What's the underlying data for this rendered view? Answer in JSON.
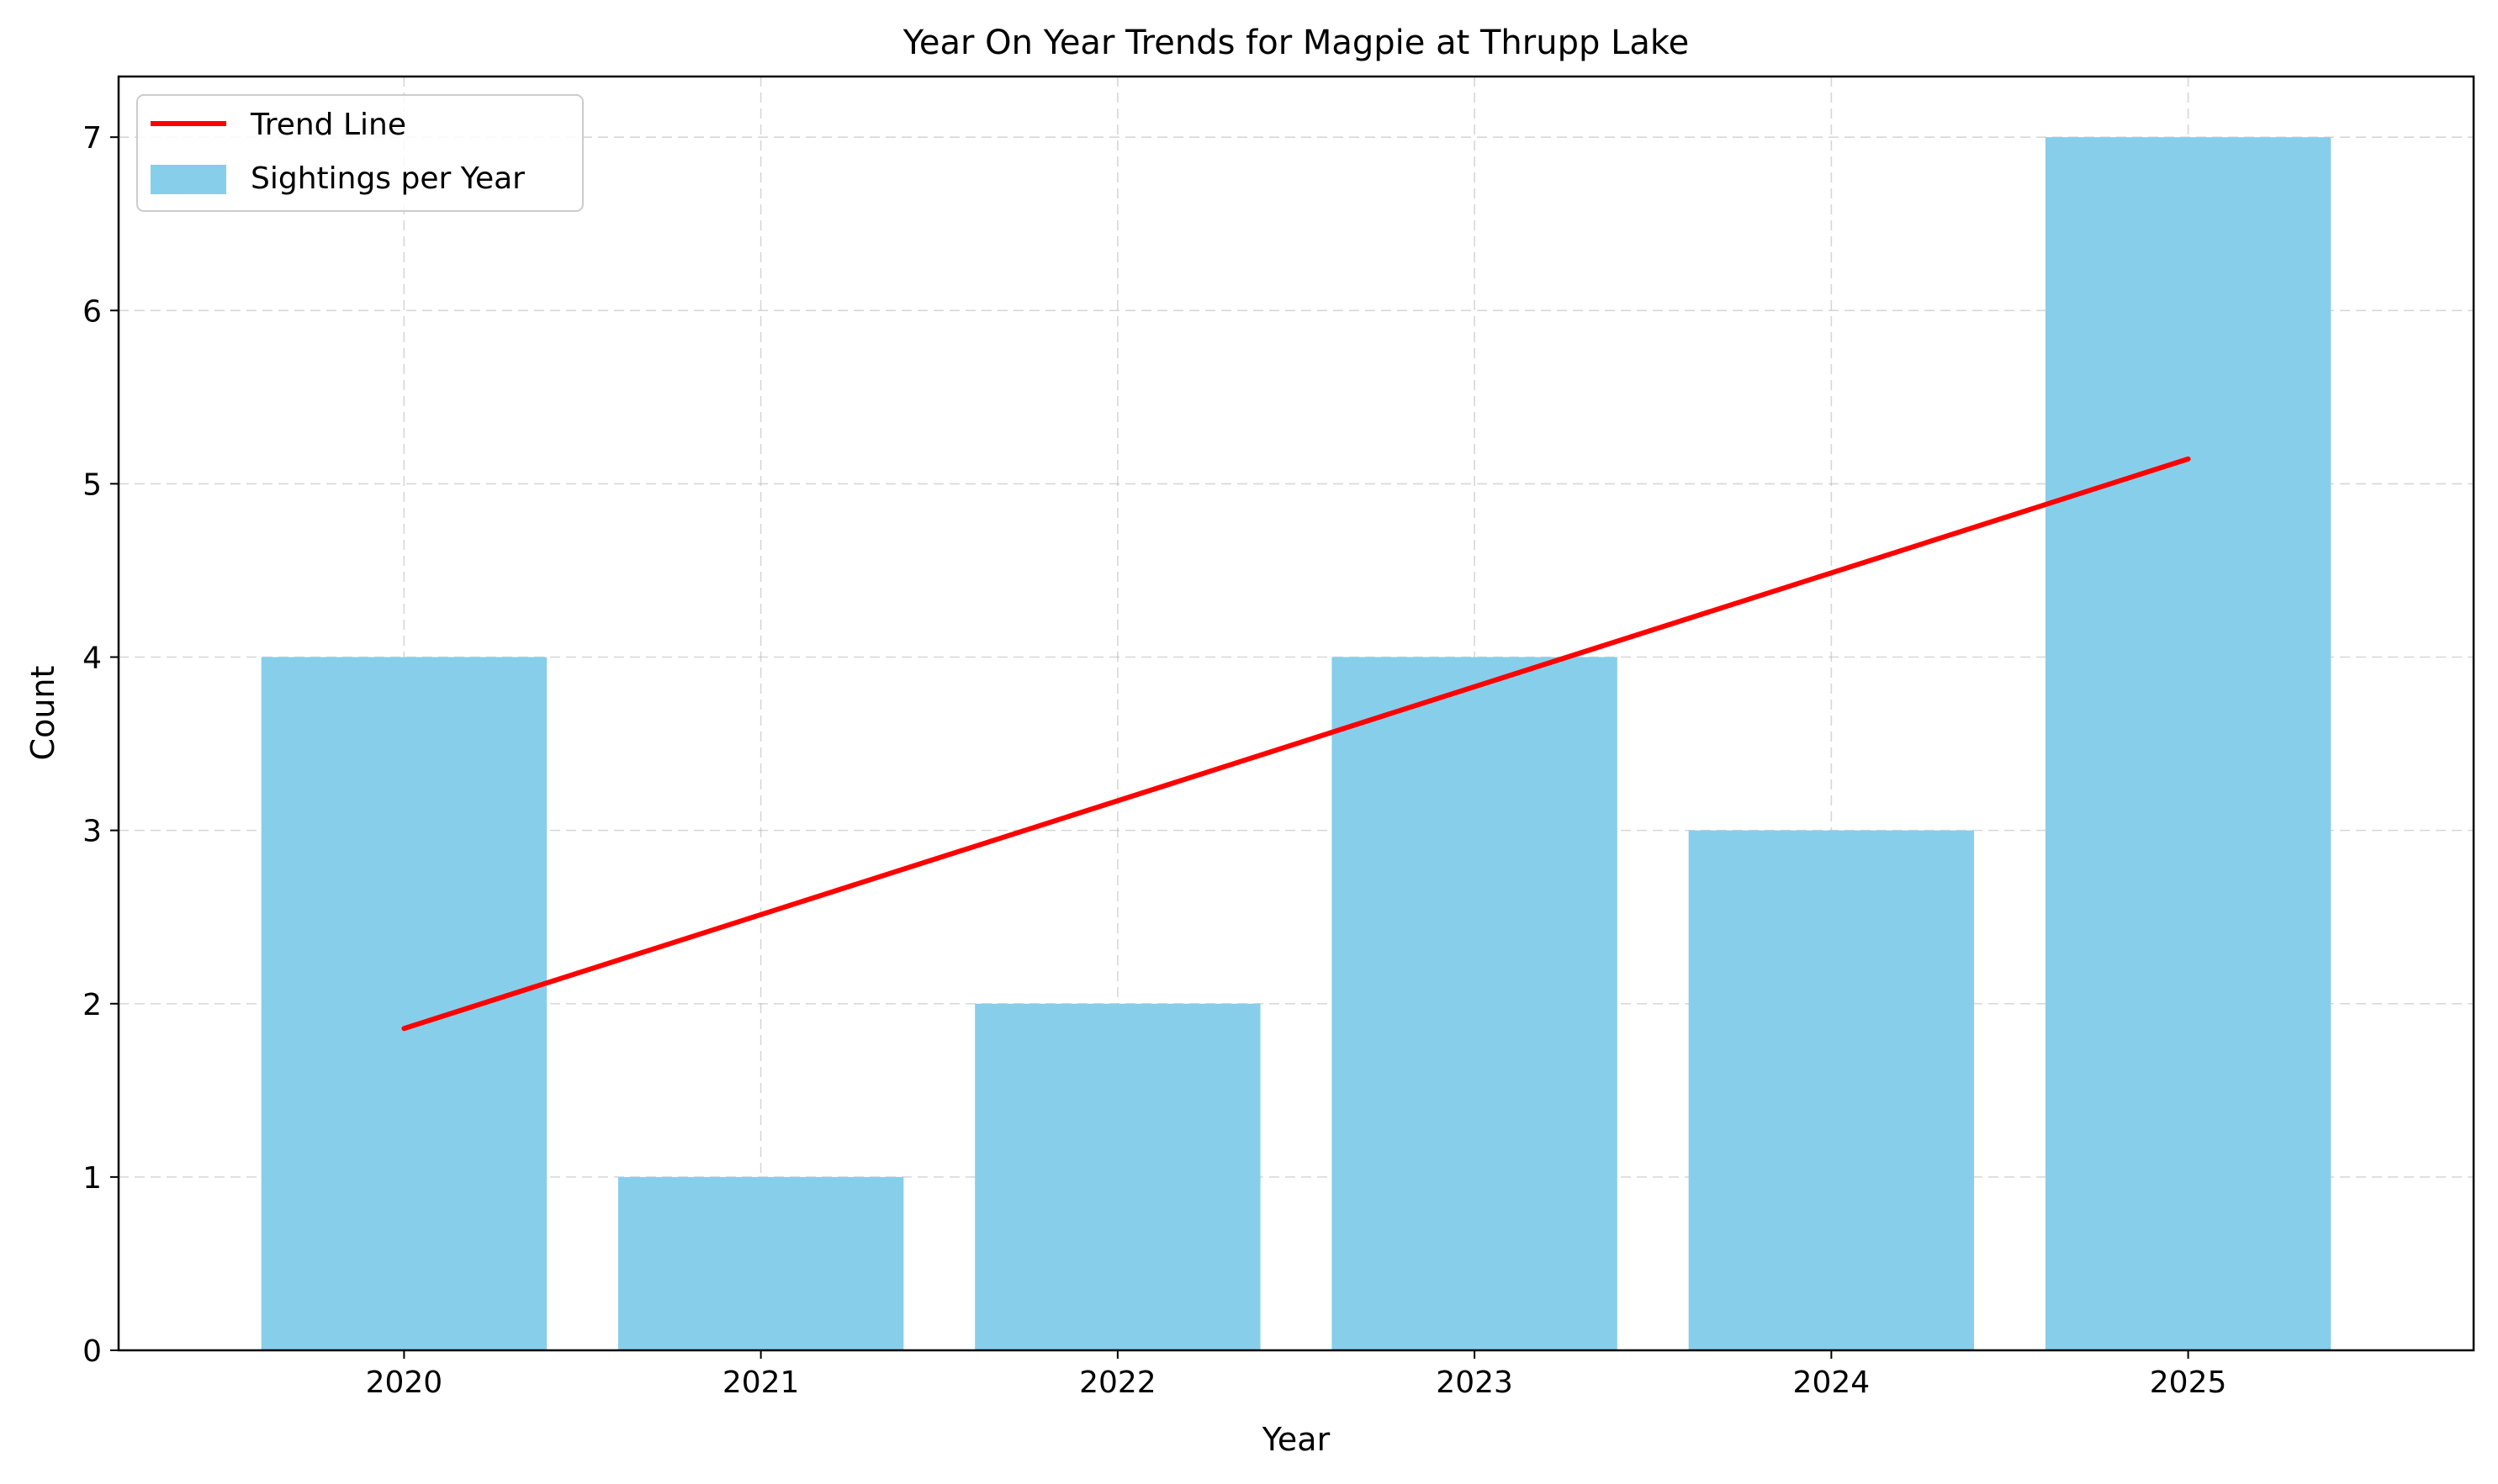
{
  "chart_data": {
    "type": "bar",
    "title": "Year On Year Trends for Magpie at Thrupp Lake",
    "xlabel": "Year",
    "ylabel": "Count",
    "categories": [
      "2020",
      "2021",
      "2022",
      "2023",
      "2024",
      "2025"
    ],
    "series": [
      {
        "name": "Sightings per Year",
        "type": "bar",
        "color": "#87CEEB",
        "values": [
          4,
          1,
          2,
          4,
          3,
          7
        ]
      },
      {
        "name": "Trend Line",
        "type": "line",
        "color": "#FF0000",
        "values": [
          1.857,
          2.514,
          3.171,
          3.829,
          4.486,
          5.143
        ]
      }
    ],
    "ylim": [
      0,
      7.35
    ],
    "yticks": [
      0,
      1,
      2,
      3,
      4,
      5,
      6,
      7
    ],
    "grid": true,
    "legend_position": "top-left"
  }
}
